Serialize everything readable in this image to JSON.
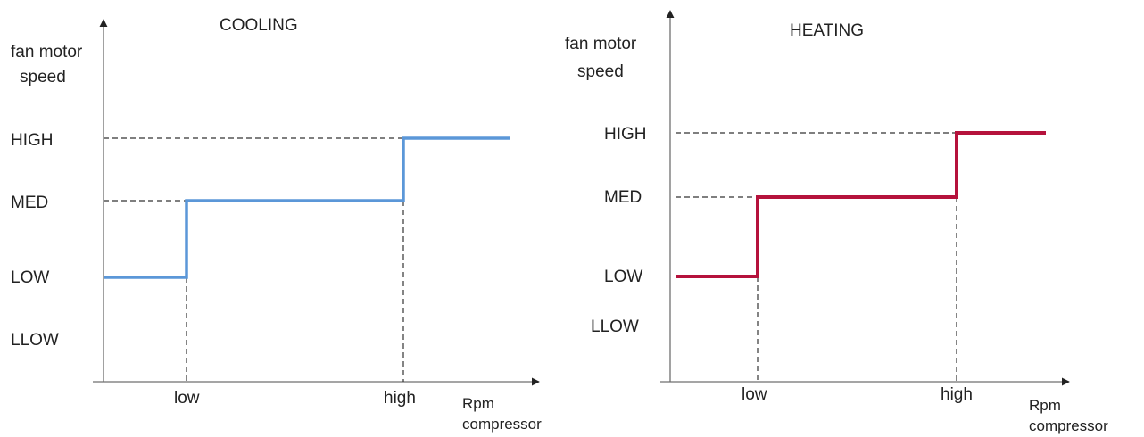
{
  "chart_data": [
    {
      "type": "line",
      "title": "COOLING",
      "ylabel": "fan motor speed",
      "xlabel": "Rpm compressor",
      "y_categories": [
        "LLOW",
        "LOW",
        "MED",
        "HIGH"
      ],
      "x_ticks": [
        "low",
        "high"
      ],
      "steps": [
        {
          "x": "start",
          "level": "LOW"
        },
        {
          "x": "low",
          "level": "MED"
        },
        {
          "x": "high",
          "level": "HIGH"
        }
      ],
      "color": "#5b97d8"
    },
    {
      "type": "line",
      "title": "HEATING",
      "ylabel": "fan motor speed",
      "xlabel": "Rpm compressor",
      "y_categories": [
        "LLOW",
        "LOW",
        "MED",
        "HIGH"
      ],
      "x_ticks": [
        "low",
        "high"
      ],
      "steps": [
        {
          "x": "start",
          "level": "LOW"
        },
        {
          "x": "low",
          "level": "MED"
        },
        {
          "x": "high",
          "level": "HIGH"
        }
      ],
      "color": "#b5123c"
    }
  ]
}
